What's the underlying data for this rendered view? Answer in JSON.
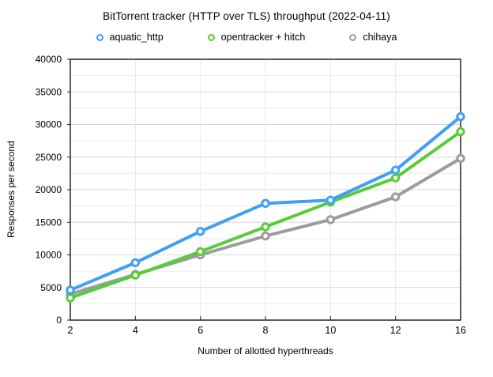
{
  "chart_data": {
    "type": "line",
    "title": "BitTorrent tracker (HTTP over TLS) throughput (2022-04-11)",
    "xlabel": "Number of allotted hyperthreads",
    "ylabel": "Responses per second",
    "categories": [
      2,
      4,
      6,
      8,
      10,
      12,
      16
    ],
    "x_tick_labels": [
      "2",
      "4",
      "6",
      "8",
      "10",
      "12",
      "16"
    ],
    "y_ticks": [
      0,
      5000,
      10000,
      15000,
      20000,
      25000,
      30000,
      35000,
      40000
    ],
    "y_minor_step": 2500,
    "ylim": [
      0,
      40000
    ],
    "grid": true,
    "legend_position": "top",
    "series": [
      {
        "name": "aquatic_http",
        "color": "#3FA0F4",
        "values": [
          4600,
          8800,
          13600,
          17900,
          18400,
          23000,
          31200
        ]
      },
      {
        "name": "opentracker + hitch",
        "color": "#58CC38",
        "values": [
          3400,
          6900,
          10500,
          14300,
          18100,
          21800,
          28900
        ]
      },
      {
        "name": "chihaya",
        "color": "#9C9C9C",
        "values": [
          4000,
          7000,
          10000,
          12900,
          15400,
          18900,
          24800
        ]
      }
    ],
    "style": {
      "frame_color": "#222222",
      "gridline_major_color": "#d7d7d7",
      "gridline_minor_color": "#eeeeee",
      "gridline_vertical_color": "#e9e9e9"
    }
  }
}
